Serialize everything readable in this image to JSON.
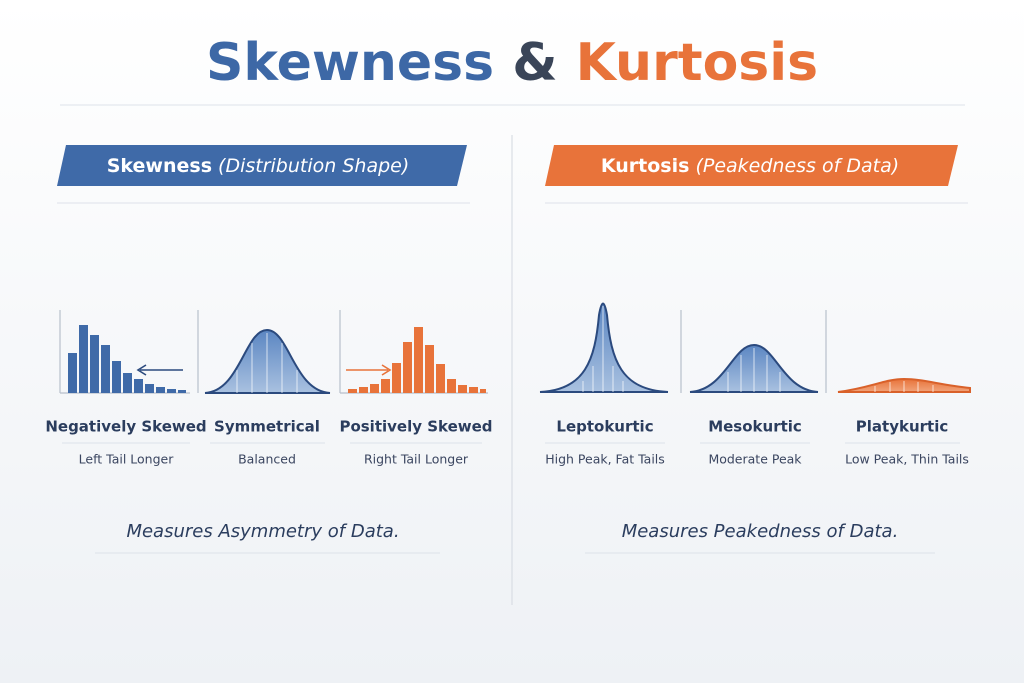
{
  "title": {
    "left": "Skewness",
    "joiner": "&",
    "right": "Kurtosis"
  },
  "skewness": {
    "header": "Skewness",
    "header_sub": "(Distribution Shape)",
    "items": [
      {
        "name": "Negatively Skewed",
        "desc": "Left Tail Longer"
      },
      {
        "name": "Symmetrical",
        "desc": "Balanced"
      },
      {
        "name": "Positively Skewed",
        "desc": "Right Tail Longer"
      }
    ],
    "footer": "Measures Asymmetry of Data."
  },
  "kurtosis": {
    "header": "Kurtosis",
    "header_sub": "(Peakedness of Data)",
    "items": [
      {
        "name": "Leptokurtic",
        "desc": "High Peak, Fat Tails"
      },
      {
        "name": "Mesokurtic",
        "desc": "Moderate Peak"
      },
      {
        "name": "Platykurtic",
        "desc": "Low Peak, Thin Tails"
      }
    ],
    "footer": "Measures Peakedness of Data."
  }
}
